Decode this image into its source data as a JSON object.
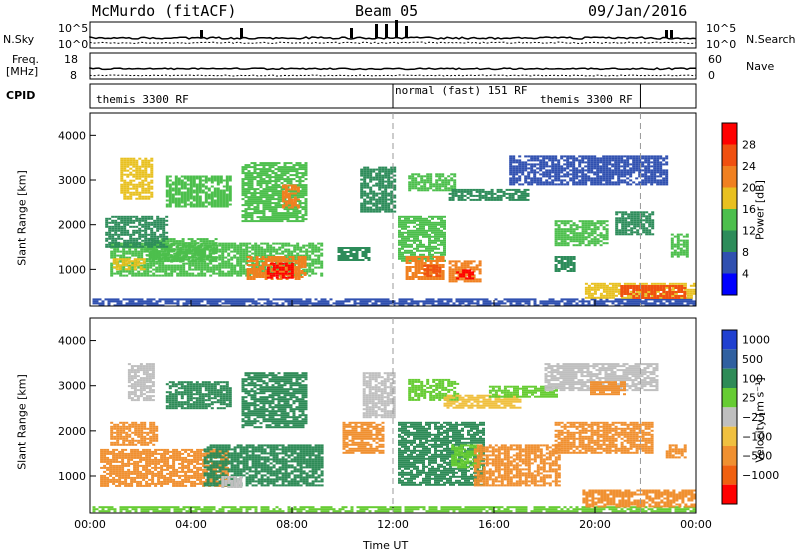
{
  "header": {
    "station": "McMurdo (fitACF)",
    "beam": "Beam 05",
    "date": "09/Jan/2016"
  },
  "strips": {
    "nsky_label": "N.Sky",
    "nsky_top": "10^5",
    "nsky_bottom": "10^0",
    "nsearch_label": "N.Search",
    "nsearch_top": "10^5",
    "nsearch_bottom": "10^0",
    "freq_label_1": "Freq.",
    "freq_label_2": "[MHz]",
    "freq_top": "18",
    "freq_bottom": "8",
    "nave_label": "Nave",
    "nave_top": "60",
    "nave_bottom": "0",
    "cpid_label": "CPID",
    "cpid_segments": [
      {
        "label": "themis 3300 RF",
        "start_hour": 0,
        "end_hour": 12
      },
      {
        "label": "normal (fast) 151 RF",
        "start_hour": 12,
        "end_hour": 21.8
      },
      {
        "label": "themis 3300 RF",
        "start_hour": 14.8,
        "end_hour": 21.8
      }
    ]
  },
  "colors": {
    "power": [
      "#0000ff",
      "#3050b0",
      "#2d8c5a",
      "#4cbf4c",
      "#e8c020",
      "#f08020",
      "#f05010",
      "#ff0000"
    ],
    "velocity": [
      "#2040d0",
      "#3060a0",
      "#2e8b57",
      "#66cc33",
      "#bfbfbf",
      "#f0c040",
      "#f09030",
      "#f06010",
      "#ff0000"
    ]
  },
  "chart_data": [
    {
      "type": "heatmap",
      "name": "power",
      "xlabel": "",
      "ylabel": "Slant Range [km]",
      "xlim": [
        0,
        24
      ],
      "ylim": [
        180,
        4500
      ],
      "yticks": [
        "1000",
        "2000",
        "3000",
        "4000"
      ],
      "colorbar_label": "Power [dB]",
      "colorbar_ticks": [
        "4",
        "8",
        "12",
        "16",
        "20",
        "24",
        "28"
      ],
      "colorbar_range": [
        0,
        32
      ],
      "patches": [
        {
          "x0": 0.1,
          "x1": 23.9,
          "y0": 200,
          "y1": 350,
          "v": 6
        },
        {
          "x0": 19.6,
          "x1": 23.9,
          "y0": 350,
          "y1": 700,
          "v": 19
        },
        {
          "x0": 21.0,
          "x1": 23.5,
          "y0": 380,
          "y1": 650,
          "v": 24
        },
        {
          "x0": 0.8,
          "x1": 9.2,
          "y0": 850,
          "y1": 1600,
          "v": 14
        },
        {
          "x0": 6.2,
          "x1": 8.5,
          "y0": 800,
          "y1": 1300,
          "v": 20
        },
        {
          "x0": 7.0,
          "x1": 8.0,
          "y0": 820,
          "y1": 1150,
          "v": 28
        },
        {
          "x0": 2.2,
          "x1": 5.0,
          "y0": 1200,
          "y1": 1700,
          "v": 12
        },
        {
          "x0": 0.9,
          "x1": 2.2,
          "y0": 1000,
          "y1": 1250,
          "v": 18
        },
        {
          "x0": 0.6,
          "x1": 3.0,
          "y0": 1500,
          "y1": 2200,
          "v": 8
        },
        {
          "x0": 1.2,
          "x1": 2.5,
          "y0": 2600,
          "y1": 3500,
          "v": 16
        },
        {
          "x0": 3.0,
          "x1": 5.5,
          "y0": 2400,
          "y1": 3100,
          "v": 14
        },
        {
          "x0": 6.0,
          "x1": 8.6,
          "y0": 2100,
          "y1": 3400,
          "v": 12
        },
        {
          "x0": 7.6,
          "x1": 8.3,
          "y0": 2400,
          "y1": 2900,
          "v": 20
        },
        {
          "x0": 10.7,
          "x1": 12.1,
          "y0": 2300,
          "y1": 3300,
          "v": 10
        },
        {
          "x0": 12.2,
          "x1": 14.0,
          "y0": 1200,
          "y1": 2200,
          "v": 13
        },
        {
          "x0": 12.5,
          "x1": 14.0,
          "y0": 800,
          "y1": 1300,
          "v": 20
        },
        {
          "x0": 13.2,
          "x1": 13.8,
          "y0": 850,
          "y1": 1100,
          "v": 27
        },
        {
          "x0": 14.2,
          "x1": 15.5,
          "y0": 750,
          "y1": 1200,
          "v": 22
        },
        {
          "x0": 14.5,
          "x1": 15.2,
          "y0": 780,
          "y1": 1000,
          "v": 29
        },
        {
          "x0": 12.6,
          "x1": 14.4,
          "y0": 2750,
          "y1": 3150,
          "v": 14
        },
        {
          "x0": 14.2,
          "x1": 17.4,
          "y0": 2550,
          "y1": 2800,
          "v": 10
        },
        {
          "x0": 16.6,
          "x1": 22.8,
          "y0": 2900,
          "y1": 3550,
          "v": 6
        },
        {
          "x0": 18.4,
          "x1": 20.5,
          "y0": 1550,
          "y1": 2100,
          "v": 12
        },
        {
          "x0": 20.8,
          "x1": 22.3,
          "y0": 1800,
          "y1": 2300,
          "v": 8
        },
        {
          "x0": 23.0,
          "x1": 23.6,
          "y0": 1300,
          "y1": 1800,
          "v": 12
        },
        {
          "x0": 18.4,
          "x1": 19.2,
          "y0": 950,
          "y1": 1300,
          "v": 11
        },
        {
          "x0": 9.8,
          "x1": 11.0,
          "y0": 1200,
          "y1": 1500,
          "v": 8
        }
      ]
    },
    {
      "type": "heatmap",
      "name": "velocity",
      "xlabel": "Time UT",
      "ylabel": "Slant Range [km]",
      "xlim": [
        0,
        24
      ],
      "ylim": [
        180,
        4500
      ],
      "xticks": [
        "00:00",
        "04:00",
        "08:00",
        "12:00",
        "16:00",
        "20:00",
        "00:00"
      ],
      "yticks": [
        "1000",
        "2000",
        "3000",
        "4000"
      ],
      "colorbar_label": "Velocity [m s⁻¹]",
      "colorbar_ticks": [
        "1000",
        "500",
        "100",
        "25",
        "−25",
        "−100",
        "−500",
        "−1000"
      ],
      "patches": [
        {
          "x0": 0.1,
          "x1": 23.9,
          "y0": 200,
          "y1": 330,
          "c": 3
        },
        {
          "x0": 19.5,
          "x1": 23.9,
          "y0": 330,
          "y1": 700,
          "c": 6
        },
        {
          "x0": 0.4,
          "x1": 5.5,
          "y0": 800,
          "y1": 1600,
          "c": 6
        },
        {
          "x0": 4.5,
          "x1": 9.2,
          "y0": 800,
          "y1": 1700,
          "c": 2
        },
        {
          "x0": 5.2,
          "x1": 6.0,
          "y0": 750,
          "y1": 1000,
          "c": 4
        },
        {
          "x0": 0.8,
          "x1": 2.6,
          "y0": 1700,
          "y1": 2200,
          "c": 6
        },
        {
          "x0": 1.5,
          "x1": 2.5,
          "y0": 2700,
          "y1": 3500,
          "c": 4
        },
        {
          "x0": 3.0,
          "x1": 5.5,
          "y0": 2500,
          "y1": 3100,
          "c": 2
        },
        {
          "x0": 6.0,
          "x1": 8.5,
          "y0": 2100,
          "y1": 3300,
          "c": 2
        },
        {
          "x0": 10.0,
          "x1": 11.6,
          "y0": 1500,
          "y1": 2200,
          "c": 6
        },
        {
          "x0": 10.8,
          "x1": 12.1,
          "y0": 2300,
          "y1": 3300,
          "c": 4
        },
        {
          "x0": 12.2,
          "x1": 15.6,
          "y0": 800,
          "y1": 2200,
          "c": 2
        },
        {
          "x0": 14.3,
          "x1": 15.4,
          "y0": 1200,
          "y1": 1700,
          "c": 3
        },
        {
          "x0": 12.6,
          "x1": 14.6,
          "y0": 2700,
          "y1": 3150,
          "c": 3
        },
        {
          "x0": 14.0,
          "x1": 17.0,
          "y0": 2500,
          "y1": 2800,
          "c": 5
        },
        {
          "x0": 15.8,
          "x1": 18.5,
          "y0": 2750,
          "y1": 3000,
          "c": 3
        },
        {
          "x0": 15.2,
          "x1": 18.6,
          "y0": 800,
          "y1": 1700,
          "c": 6
        },
        {
          "x0": 18.4,
          "x1": 22.3,
          "y0": 1500,
          "y1": 2200,
          "c": 6
        },
        {
          "x0": 18.0,
          "x1": 22.5,
          "y0": 2900,
          "y1": 3500,
          "c": 4
        },
        {
          "x0": 19.8,
          "x1": 21.2,
          "y0": 2800,
          "y1": 3100,
          "c": 6
        },
        {
          "x0": 22.8,
          "x1": 23.6,
          "y0": 1400,
          "y1": 1700,
          "c": 6
        }
      ]
    }
  ]
}
